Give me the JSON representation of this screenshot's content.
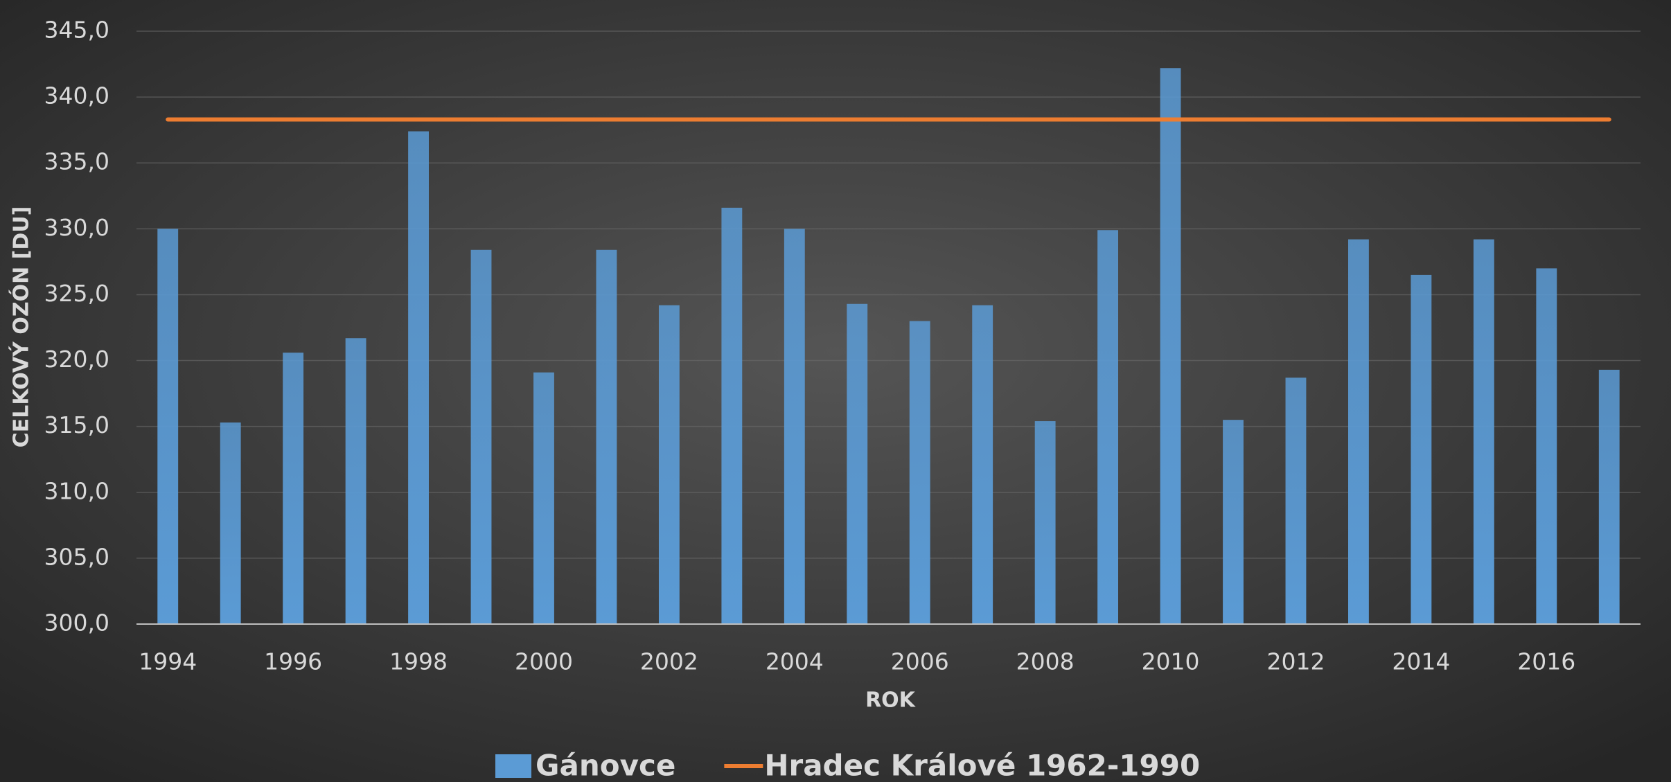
{
  "chart_data": {
    "type": "bar",
    "y_label": "CELKOVÝ OZÓN [DU]",
    "x_label": "ROK",
    "categories": [
      "1994",
      null,
      "1996",
      null,
      "1998",
      null,
      "2000",
      null,
      "2002",
      null,
      "2004",
      null,
      "2006",
      null,
      "2008",
      null,
      "2010",
      null,
      "2012",
      null,
      "2014",
      null,
      "2016",
      null
    ],
    "series": [
      {
        "name": "Gánovce",
        "type": "bar",
        "color": "#5b9bd5",
        "values": [
          330.0,
          315.3,
          320.6,
          321.7,
          337.4,
          328.4,
          319.1,
          328.4,
          324.2,
          331.6,
          330.0,
          324.3,
          323.0,
          324.2,
          315.4,
          329.9,
          342.2,
          315.5,
          318.7,
          329.2,
          326.5,
          329.2,
          327.0,
          319.3
        ]
      },
      {
        "name": "Hradec Králové 1962-1990",
        "type": "line",
        "color": "#ed7d31",
        "values": [
          338.3,
          338.3,
          338.3,
          338.3,
          338.3,
          338.3,
          338.3,
          338.3,
          338.3,
          338.3,
          338.3,
          338.3,
          338.3,
          338.3,
          338.3,
          338.3,
          338.3,
          338.3,
          338.3,
          338.3,
          338.3,
          338.3,
          338.3,
          338.3
        ]
      }
    ],
    "ylim": [
      300,
      345
    ],
    "yticks": [
      {
        "value": 300,
        "label": "300,0"
      },
      {
        "value": 305,
        "label": "305,0"
      },
      {
        "value": 310,
        "label": "310,0"
      },
      {
        "value": 315,
        "label": "315,0"
      },
      {
        "value": 320,
        "label": "320,0"
      },
      {
        "value": 325,
        "label": "325,0"
      },
      {
        "value": 330,
        "label": "330,0"
      },
      {
        "value": 335,
        "label": "335,0"
      },
      {
        "value": 340,
        "label": "340,0"
      },
      {
        "value": 345,
        "label": "345,0"
      }
    ],
    "grid": true,
    "legend": "bottom"
  }
}
